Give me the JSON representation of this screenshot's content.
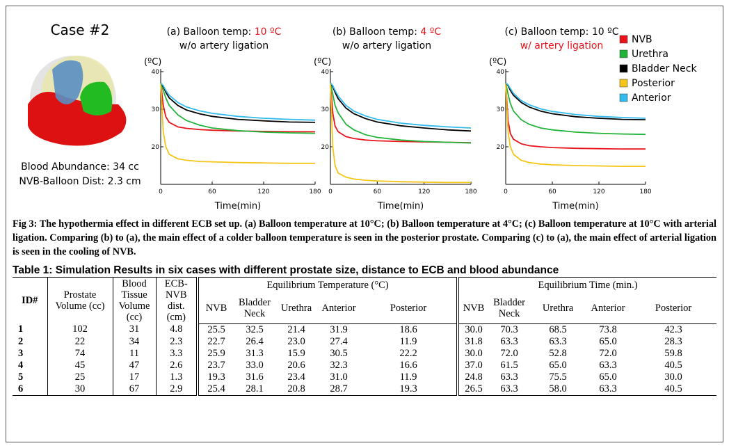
{
  "case": {
    "title": "Case #2",
    "info": [
      "Blood Abundance: 34 cc",
      "NVB-Balloon Dist: 2.3 cm"
    ]
  },
  "chart_data": [
    {
      "type": "line",
      "title": "(a) Balloon temp: ",
      "title_value": "10 ºC",
      "title_value_color": "#e8141b",
      "subtitle": "w/o artery ligation",
      "subtitle_color": "#000000",
      "y_label": "(ºC)",
      "x_label": "Time(min)",
      "xlim": [
        0,
        180
      ],
      "xticks": [
        0,
        60,
        120,
        180
      ],
      "ylim": [
        10,
        40
      ],
      "yticks": [
        20,
        30,
        40
      ],
      "x": [
        0,
        3,
        6,
        10,
        20,
        30,
        45,
        60,
        90,
        120,
        150,
        180
      ],
      "series": [
        {
          "color": "#e8141b",
          "values": [
            37,
            31,
            28,
            26.5,
            25.3,
            24.9,
            24.6,
            24.4,
            24.2,
            24.1,
            24,
            24
          ]
        },
        {
          "color": "#22b33b",
          "values": [
            37,
            35,
            33,
            31,
            28.5,
            27,
            25.8,
            25,
            24.3,
            23.9,
            23.7,
            23.6
          ]
        },
        {
          "color": "#000000",
          "values": [
            37,
            36,
            34.5,
            33,
            31,
            29.8,
            28.8,
            28.1,
            27.3,
            26.9,
            26.6,
            26.5
          ]
        },
        {
          "color": "#f5c518",
          "values": [
            37,
            24,
            20,
            18,
            16.8,
            16.4,
            16.1,
            16,
            15.8,
            15.7,
            15.6,
            15.6
          ]
        },
        {
          "color": "#33bbee",
          "values": [
            37,
            36.3,
            35,
            33.7,
            31.8,
            30.6,
            29.6,
            28.9,
            28.1,
            27.6,
            27.3,
            27.1
          ]
        }
      ]
    },
    {
      "type": "line",
      "title": "(b) Balloon temp: ",
      "title_value": "4 ºC",
      "title_value_color": "#e8141b",
      "subtitle": "w/o artery ligation",
      "subtitle_color": "#000000",
      "y_label": "(ºC)",
      "x_label": "Time(min)",
      "xlim": [
        0,
        180
      ],
      "xticks": [
        0,
        60,
        120,
        180
      ],
      "ylim": [
        10,
        40
      ],
      "yticks": [
        20,
        30,
        40
      ],
      "x": [
        0,
        3,
        6,
        10,
        20,
        30,
        45,
        60,
        90,
        120,
        150,
        180
      ],
      "series": [
        {
          "color": "#e8141b",
          "values": [
            37,
            29,
            25.5,
            24,
            22.7,
            22.2,
            21.8,
            21.6,
            21.4,
            21.3,
            21.2,
            21.1
          ]
        },
        {
          "color": "#22b33b",
          "values": [
            37,
            34,
            31,
            29,
            26,
            24.5,
            23.2,
            22.5,
            21.8,
            21.4,
            21.2,
            21
          ]
        },
        {
          "color": "#000000",
          "values": [
            37,
            36,
            34.5,
            32.8,
            30.3,
            28.8,
            27.5,
            26.6,
            25.6,
            25,
            24.5,
            24.2
          ]
        },
        {
          "color": "#f5c518",
          "values": [
            37,
            20,
            15,
            13,
            11.9,
            11.4,
            11.1,
            10.9,
            10.7,
            10.6,
            10.5,
            10.5
          ]
        },
        {
          "color": "#33bbee",
          "values": [
            37,
            36.3,
            35,
            33.5,
            31,
            29.5,
            28.2,
            27.3,
            26.3,
            25.7,
            25.3,
            25
          ]
        }
      ]
    },
    {
      "type": "line",
      "title": "(c) Balloon temp: ",
      "title_value": "10 ºC",
      "title_value_color": "#000000",
      "subtitle": "w/ artery ligation",
      "subtitle_color": "#e8141b",
      "y_label": "(ºC)",
      "x_label": "Time(min)",
      "xlim": [
        0,
        180
      ],
      "xticks": [
        0,
        60,
        120,
        180
      ],
      "ylim": [
        10,
        40
      ],
      "yticks": [
        20,
        30,
        40
      ],
      "x": [
        0,
        3,
        6,
        10,
        20,
        30,
        45,
        60,
        90,
        120,
        150,
        180
      ],
      "legend": "right",
      "series": [
        {
          "name": "NVB",
          "color": "#e8141b",
          "values": [
            37,
            27,
            23.5,
            22,
            20.8,
            20.3,
            20,
            19.8,
            19.6,
            19.5,
            19.4,
            19.4
          ]
        },
        {
          "name": "Urethra",
          "color": "#22b33b",
          "values": [
            37,
            34,
            31.5,
            29.5,
            27.2,
            26,
            25,
            24.5,
            23.9,
            23.6,
            23.4,
            23.3
          ]
        },
        {
          "name": "Bladder Neck",
          "color": "#000000",
          "values": [
            37,
            36.3,
            35,
            33.7,
            31.8,
            30.6,
            29.5,
            28.8,
            28,
            27.6,
            27.3,
            27.2
          ]
        },
        {
          "name": "Posterior",
          "color": "#f5c518",
          "values": [
            37,
            24,
            20,
            18,
            16.4,
            15.8,
            15.4,
            15.2,
            15,
            14.9,
            14.8,
            14.8
          ]
        },
        {
          "name": "Anterior",
          "color": "#33bbee",
          "values": [
            37,
            36.5,
            35.5,
            34.2,
            32.3,
            31.2,
            30.1,
            29.4,
            28.6,
            28.1,
            27.8,
            27.6
          ]
        }
      ]
    }
  ],
  "caption": "Fig 3: The hypothermia effect in different ECB set up. (a) Balloon temperature at 10°C; (b) Balloon temperature at 4°C; (c) Balloon temperature at 10°C with arterial ligation. Comparing (b) to (a), the main effect of a colder balloon temperature is seen in the posterior prostate. Comparing (c) to (a), the main effect of arterial ligation is seen in the cooling of NVB.",
  "table": {
    "title": "Table 1: Simulation Results in six cases with different prostate size, distance to ECB and blood abundance",
    "headers": [
      "ID#",
      "Prostate Volume (cc)",
      "Blood Tissue Volume (cc)",
      "ECB-NVB dist. (cm)",
      "Equilibrium Temperature (°C)",
      "Equilibrium Time (min.)"
    ],
    "subheaders": [
      "NVB",
      "Bladder Neck",
      "Urethra",
      "Anterior",
      "Posterior",
      "NVB",
      "Bladder Neck",
      "Urethra",
      "Anterior",
      "Posterior"
    ],
    "rows": [
      [
        "1",
        "102",
        "31",
        "4.8",
        "25.5",
        "32.5",
        "21.4",
        "31.9",
        "18.6",
        "30.0",
        "70.3",
        "68.5",
        "73.8",
        "42.3"
      ],
      [
        "2",
        "22",
        "34",
        "2.3",
        "22.7",
        "26.4",
        "23.0",
        "27.4",
        "11.9",
        "31.8",
        "63.3",
        "63.3",
        "65.0",
        "28.3"
      ],
      [
        "3",
        "74",
        "11",
        "3.3",
        "25.9",
        "31.3",
        "15.9",
        "30.5",
        "22.2",
        "30.0",
        "72.0",
        "52.8",
        "72.0",
        "59.8"
      ],
      [
        "4",
        "45",
        "47",
        "2.6",
        "23.7",
        "33.0",
        "20.6",
        "32.3",
        "16.6",
        "37.0",
        "61.5",
        "65.0",
        "63.3",
        "40.5"
      ],
      [
        "5",
        "25",
        "17",
        "1.3",
        "19.3",
        "31.6",
        "23.4",
        "31.0",
        "11.9",
        "24.8",
        "63.3",
        "75.5",
        "65.0",
        "30.0"
      ],
      [
        "6",
        "30",
        "67",
        "2.9",
        "25.4",
        "28.1",
        "20.8",
        "28.7",
        "19.3",
        "26.5",
        "63.3",
        "58.0",
        "63.3",
        "40.5"
      ]
    ]
  }
}
